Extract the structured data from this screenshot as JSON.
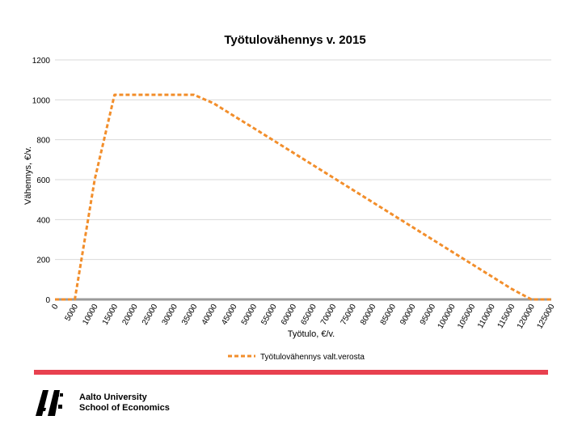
{
  "chart_data": {
    "type": "line",
    "title": "Työtulovähennys  v. 2015",
    "xlabel": "Työtulo, €/v.",
    "ylabel": "Vähennys, €/v.",
    "ylim": [
      0,
      1200
    ],
    "yticks": [
      0,
      200,
      400,
      600,
      800,
      1000,
      1200
    ],
    "x_ticks": [
      "0",
      "5000",
      "10000",
      "15000",
      "20000",
      "25000",
      "30000",
      "35000",
      "40000",
      "45000",
      "50000",
      "55000",
      "60000",
      "65000",
      "70000",
      "75000",
      "80000",
      "85000",
      "90000",
      "95000",
      "100000",
      "105000",
      "110000",
      "115000",
      "120000",
      "125000"
    ],
    "grid": true,
    "legend": "bottom",
    "series": [
      {
        "name": "Työtulovähennys valt.verosta",
        "color": "#F28E2B",
        "x": [
          0,
          5000,
          10000,
          15000,
          20000,
          25000,
          30000,
          35000,
          40000,
          45000,
          50000,
          55000,
          60000,
          65000,
          70000,
          75000,
          80000,
          85000,
          90000,
          95000,
          100000,
          105000,
          110000,
          115000,
          120000,
          125000
        ],
        "values": [
          0,
          0,
          600,
          1025,
          1025,
          1025,
          1025,
          1025,
          982,
          920,
          859,
          797,
          735,
          673,
          611,
          549,
          487,
          425,
          363,
          301,
          239,
          177,
          115,
          53,
          0,
          0
        ]
      }
    ]
  },
  "footer": {
    "divider_color": "#E8414F",
    "logo_line1": "Aalto University",
    "logo_line2": "School of Economics"
  }
}
